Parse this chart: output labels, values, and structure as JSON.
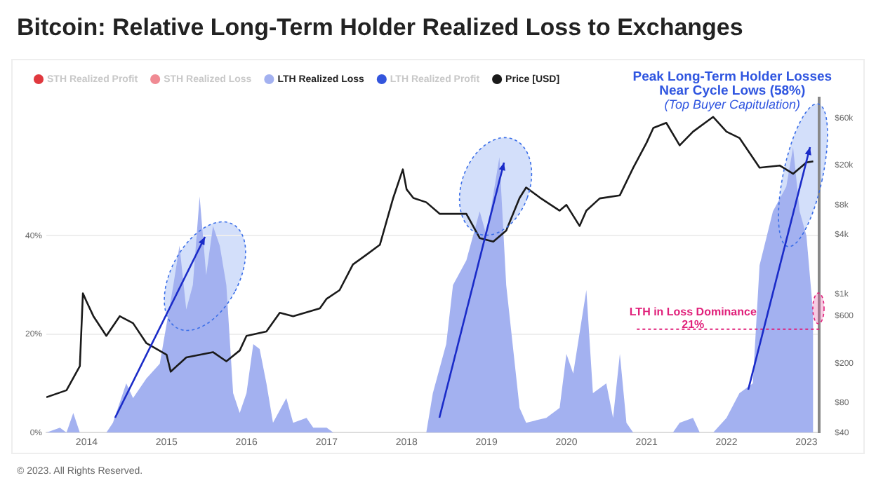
{
  "chart_data": {
    "type": "area",
    "title": "Bitcoin: Relative Long-Term Holder Realized Loss to Exchanges",
    "series": [
      {
        "name": "STH Realized Profit",
        "color": "#e0383e",
        "type": "line"
      },
      {
        "name": "STH Realized Loss",
        "color": "#f08a93",
        "type": "line"
      },
      {
        "name": "LTH Realized Loss",
        "color": "#a3b1f0",
        "x": [
          "2013-07",
          "2013-09",
          "2013-10",
          "2013-11",
          "2013-12",
          "2014-04",
          "2014-05",
          "2014-07",
          "2014-08",
          "2014-10",
          "2014-12",
          "2015-01",
          "2015-02",
          "2015-03",
          "2015-04",
          "2015-05",
          "2015-06",
          "2015-07",
          "2015-08",
          "2015-09",
          "2015-10",
          "2015-11",
          "2015-12",
          "2016-01",
          "2016-02",
          "2016-03",
          "2016-04",
          "2016-05",
          "2016-07",
          "2016-08",
          "2016-10",
          "2016-11",
          "2017-01",
          "2017-02",
          "2018-04",
          "2018-05",
          "2018-07",
          "2018-08",
          "2018-10",
          "2018-12",
          "2019-01",
          "2019-03",
          "2019-04",
          "2019-06",
          "2019-07",
          "2019-10",
          "2019-12",
          "2020-01",
          "2020-02",
          "2020-04",
          "2020-05",
          "2020-07",
          "2020-08",
          "2020-09",
          "2020-10",
          "2020-11",
          "2021-05",
          "2021-06",
          "2021-08",
          "2021-09",
          "2021-11",
          "2022-01",
          "2022-03",
          "2022-05",
          "2022-06",
          "2022-08",
          "2022-10",
          "2022-11",
          "2022-12",
          "2023-01",
          "2023-02"
        ],
        "values": [
          0,
          1,
          0,
          4,
          0,
          0,
          2,
          10,
          7,
          11,
          14,
          22,
          30,
          38,
          25,
          30,
          48,
          32,
          42,
          38,
          30,
          8,
          4,
          8,
          18,
          17,
          10,
          2,
          7,
          2,
          3,
          1,
          1,
          0,
          0,
          8,
          18,
          30,
          35,
          45,
          40,
          56,
          30,
          5,
          2,
          3,
          5,
          16,
          12,
          29,
          8,
          10,
          3,
          16,
          2,
          0,
          0,
          2,
          3,
          0,
          0,
          3,
          8,
          10,
          34,
          45,
          50,
          58,
          45,
          40,
          24
        ]
      },
      {
        "name": "LTH Realized Profit",
        "color": "#3355dd",
        "type": "line"
      },
      {
        "name": "Price [USD]",
        "color": "#1a1a1a",
        "type": "line",
        "axis": "y2",
        "x": [
          "2013-07",
          "2013-10",
          "2013-12",
          "2013-12-15",
          "2014-01",
          "2014-02",
          "2014-04",
          "2014-06",
          "2014-08",
          "2014-10",
          "2015-01",
          "2015-01-20",
          "2015-04",
          "2015-08",
          "2015-10",
          "2015-12",
          "2016-01",
          "2016-04",
          "2016-06",
          "2016-08",
          "2016-12",
          "2017-01",
          "2017-03",
          "2017-05",
          "2017-07",
          "2017-09",
          "2017-11",
          "2017-12-15",
          "2018-01",
          "2018-02",
          "2018-04",
          "2018-06",
          "2018-10",
          "2018-12",
          "2019-02",
          "2019-04",
          "2019-06",
          "2019-07",
          "2019-09",
          "2019-12",
          "2020-01",
          "2020-03",
          "2020-04",
          "2020-06",
          "2020-09",
          "2020-11",
          "2021-01",
          "2021-02",
          "2021-04",
          "2021-06",
          "2021-08",
          "2021-11",
          "2022-01",
          "2022-03",
          "2022-06",
          "2022-09",
          "2022-11",
          "2023-01",
          "2023-02"
        ],
        "values": [
          91,
          107,
          188,
          1020,
          840,
          600,
          380,
          600,
          510,
          320,
          245,
          165,
          230,
          260,
          210,
          270,
          380,
          420,
          650,
          600,
          720,
          900,
          1100,
          2000,
          2500,
          3160,
          9400,
          18300,
          11500,
          9400,
          8500,
          6500,
          6500,
          3700,
          3400,
          4400,
          9400,
          12000,
          9500,
          7000,
          8000,
          4900,
          7000,
          9300,
          10000,
          19000,
          34000,
          48000,
          54000,
          32000,
          44000,
          62000,
          44000,
          38000,
          19000,
          20000,
          16500,
          21500,
          22000
        ]
      }
    ],
    "xlim": [
      "2013-07",
      "2023-03"
    ],
    "xticks": [
      {
        "value": "2014",
        "label": "2014"
      },
      {
        "value": "2015",
        "label": "2015"
      },
      {
        "value": "2016",
        "label": "2016"
      },
      {
        "value": "2017",
        "label": "2017"
      },
      {
        "value": "2018",
        "label": "2018"
      },
      {
        "value": "2019",
        "label": "2019"
      },
      {
        "value": "2020",
        "label": "2020"
      },
      {
        "value": "2021",
        "label": "2021"
      },
      {
        "value": "2022",
        "label": "2022"
      },
      {
        "value": "2023",
        "label": "2023"
      }
    ],
    "ylim": [
      0,
      68
    ],
    "yticks": [
      {
        "value": 0,
        "label": "0%"
      },
      {
        "value": 20,
        "label": "20%"
      },
      {
        "value": 40,
        "label": "40%"
      }
    ],
    "y2lim": [
      40,
      96000
    ],
    "y2ticks": [
      {
        "value": 40,
        "label": "$40"
      },
      {
        "value": 80,
        "label": "$80"
      },
      {
        "value": 200,
        "label": "$200"
      },
      {
        "value": 600,
        "label": "$600"
      },
      {
        "value": 1000,
        "label": "$1k"
      },
      {
        "value": 4000,
        "label": "$4k"
      },
      {
        "value": 8000,
        "label": "$8k"
      },
      {
        "value": 20000,
        "label": "$20k"
      },
      {
        "value": 60000,
        "label": "$60k"
      }
    ],
    "log": "y2",
    "grid": "y",
    "legend": "top left",
    "ref_lines": [
      {
        "axis": "y",
        "value": 21,
        "label": "LTH in Loss Dominance 21%",
        "color": "#e0207a",
        "line_style": "dotted"
      }
    ],
    "annotations": [
      "Peak Long-Term Holder Losses Near Cycle Lows (58%)",
      "(Top Buyer Capitulation)",
      "© 2023. All Rights Reserved."
    ]
  }
}
